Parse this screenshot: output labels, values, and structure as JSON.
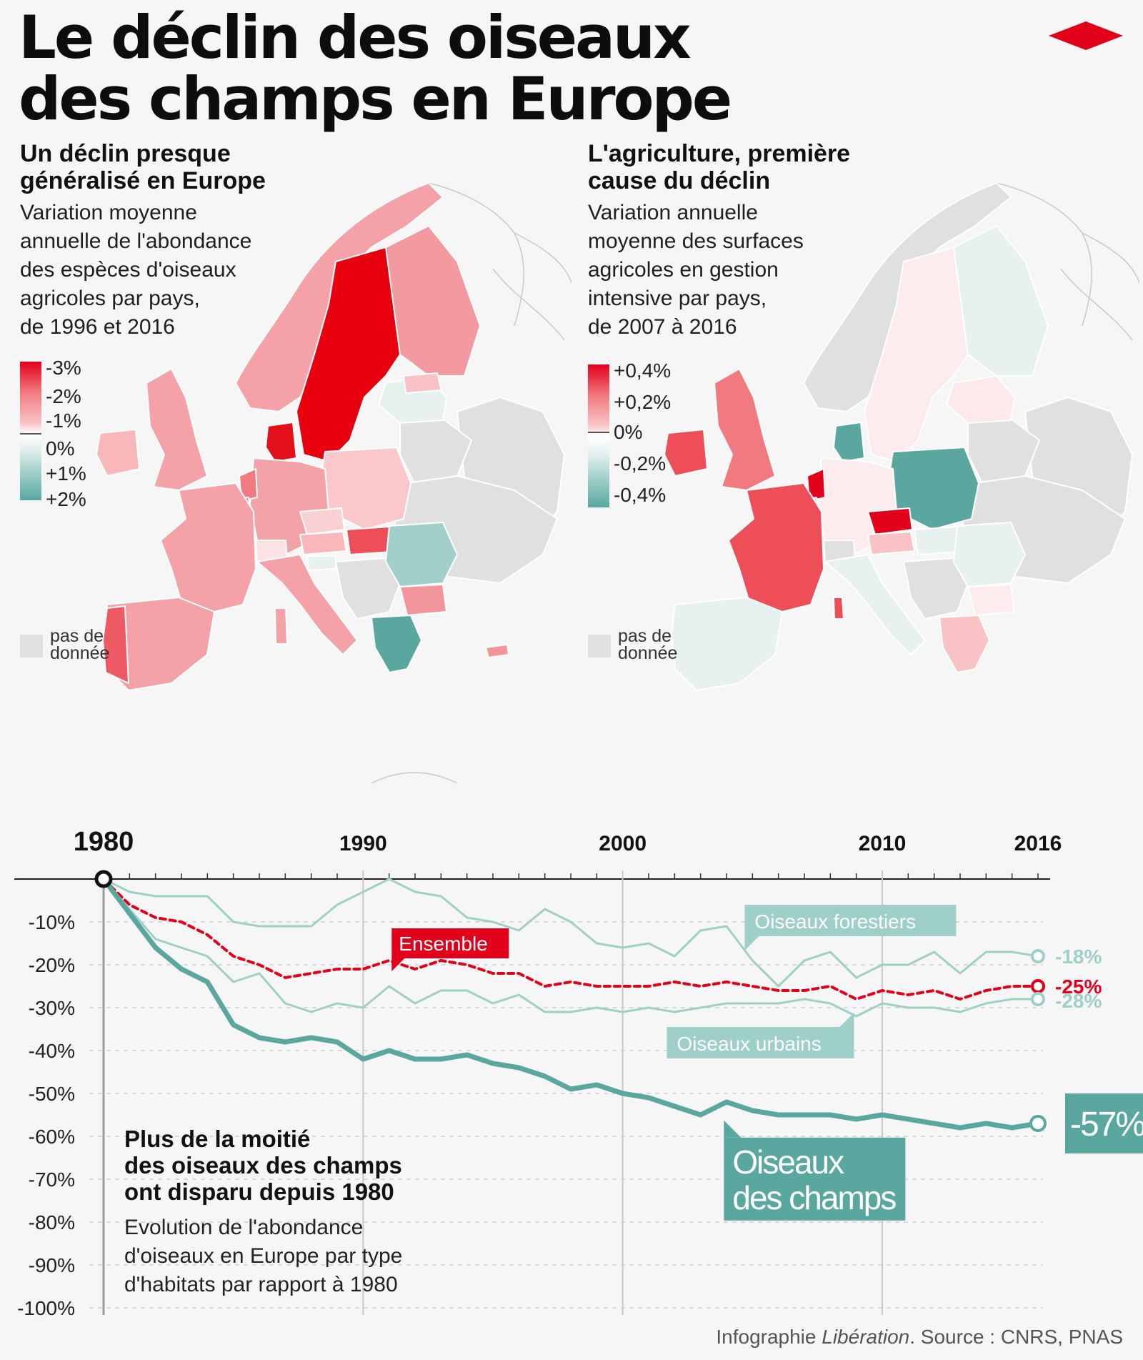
{
  "title": {
    "line1": "Le déclin des oiseaux",
    "line2": "des champs en Europe"
  },
  "brand": {
    "logo": "liberation-diamond-logo",
    "color": "#e3001b"
  },
  "map_left": {
    "heading_l1": "Un déclin presque",
    "heading_l2": "généralisé en Europe",
    "sub_l1": "Variation moyenne",
    "sub_l2": "annuelle de l'abondance",
    "sub_l3": "des espèces d'oiseaux",
    "sub_l4": "agricoles par pays,",
    "sub_l5": "de 1996 et 2016",
    "legend": [
      "-3%",
      "-2%",
      "-1%",
      "0%",
      "+1%",
      "+2%"
    ],
    "nodata_l1": "pas de",
    "nodata_l2": "donnée"
  },
  "map_right": {
    "heading_l1": "L'agriculture, première",
    "heading_l2": "cause du déclin",
    "sub_l1": "Variation annuelle",
    "sub_l2": "moyenne des surfaces",
    "sub_l3": "agricoles en gestion",
    "sub_l4": "intensive par pays,",
    "sub_l5": "de 2007 à 2016",
    "legend": [
      "+0,4%",
      "+0,2%",
      "0%",
      "-0,2%",
      "-0,4%"
    ],
    "nodata_l1": "pas de",
    "nodata_l2": "donnée"
  },
  "colors": {
    "red": "#e3001b",
    "teal": "#5aa7a0",
    "teal_light": "#9fcfc9",
    "nodata": "#e0e0e0"
  },
  "chart_data": {
    "type": "line",
    "x_ticks": [
      "1980",
      "1990",
      "2000",
      "2010",
      "2016"
    ],
    "x_tick_values": [
      1980,
      1990,
      2000,
      2010,
      2016
    ],
    "y_ticks": [
      "-10%",
      "-20%",
      "-30%",
      "-40%",
      "-50%",
      "-60%",
      "-70%",
      "-80%",
      "-90%",
      "-100%"
    ],
    "xlim": [
      1980,
      2016
    ],
    "ylim": [
      -100,
      0
    ],
    "years": [
      1980,
      1981,
      1982,
      1983,
      1984,
      1985,
      1986,
      1987,
      1988,
      1989,
      1990,
      1991,
      1992,
      1993,
      1994,
      1995,
      1996,
      1997,
      1998,
      1999,
      2000,
      2001,
      2002,
      2003,
      2004,
      2005,
      2006,
      2007,
      2008,
      2009,
      2010,
      2011,
      2012,
      2013,
      2014,
      2015,
      2016
    ],
    "series": [
      {
        "name": "Oiseaux forestiers",
        "end_label": "-18%",
        "values": [
          0,
          -3,
          -4,
          -4,
          -4,
          -10,
          -11,
          -11,
          -11,
          -6,
          -3,
          0,
          -3,
          -4,
          -9,
          -10,
          -12,
          -7,
          -10,
          -15,
          -16,
          -15,
          -18,
          -12,
          -11,
          -19,
          -25,
          -19,
          -17,
          -23,
          -20,
          -20,
          -17,
          -22,
          -17,
          -17,
          -18
        ]
      },
      {
        "name": "Ensemble",
        "end_label": "-25%",
        "values": [
          0,
          -6,
          -9,
          -10,
          -13,
          -18,
          -20,
          -23,
          -22,
          -21,
          -21,
          -19,
          -21,
          -19,
          -20,
          -22,
          -22,
          -25,
          -24,
          -25,
          -25,
          -25,
          -24,
          -25,
          -24,
          -25,
          -26,
          -26,
          -25,
          -28,
          -26,
          -27,
          -26,
          -28,
          -26,
          -25,
          -25
        ]
      },
      {
        "name": "Oiseaux urbains",
        "end_label": "-28%",
        "values": [
          0,
          -7,
          -14,
          -16,
          -18,
          -24,
          -22,
          -29,
          -31,
          -29,
          -30,
          -25,
          -29,
          -26,
          -26,
          -29,
          -27,
          -31,
          -31,
          -30,
          -31,
          -30,
          -31,
          -30,
          -29,
          -29,
          -29,
          -28,
          -29,
          -32,
          -29,
          -30,
          -30,
          -31,
          -29,
          -28,
          -28
        ]
      },
      {
        "name": "Oiseaux des champs",
        "name_l1": "Oiseaux",
        "name_l2": "des champs",
        "end_label": "-57%",
        "values": [
          0,
          -8,
          -16,
          -21,
          -24,
          -34,
          -37,
          -38,
          -37,
          -38,
          -42,
          -40,
          -42,
          -42,
          -41,
          -43,
          -44,
          -46,
          -49,
          -48,
          -50,
          -51,
          -53,
          -55,
          -52,
          -54,
          -55,
          -55,
          -55,
          -56,
          -55,
          -56,
          -57,
          -58,
          -57,
          -58,
          -57
        ]
      }
    ],
    "annotation": {
      "heading_l1": "Plus de la moitié",
      "heading_l2": "des oiseaux des champs",
      "heading_l3": "ont disparu depuis 1980",
      "sub_l1": "Evolution de l'abondance",
      "sub_l2": "d'oiseaux en Europe par type",
      "sub_l3": "d'habitats par rapport à 1980"
    }
  },
  "credit": {
    "prefix": "Infographie ",
    "brand": "Libération",
    "suffix": ". Source : CNRS, PNAS"
  }
}
